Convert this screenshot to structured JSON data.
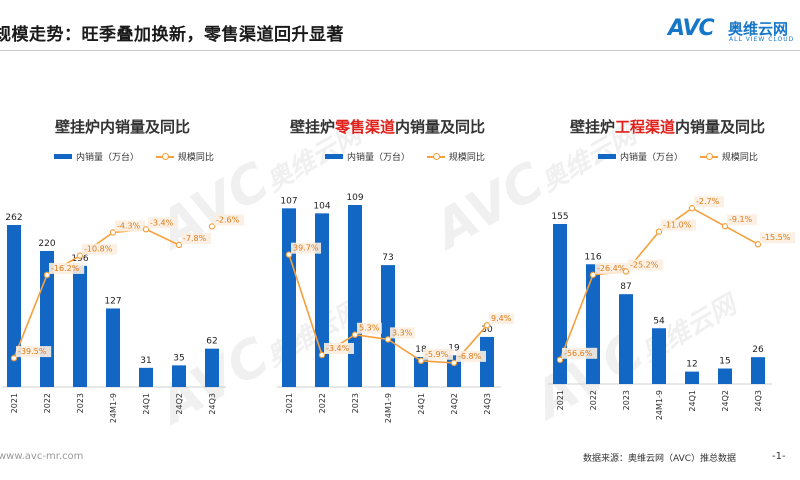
{
  "header": {
    "title": "规模走势：旺季叠加换新，零售渠道回升显著",
    "logo_mark": "AVC",
    "logo_cn": "奥维云网",
    "logo_en": "ALL VIEW CLOUD"
  },
  "watermark": {
    "mark": "AVC",
    "cn": "奥维云网",
    "en": "ALL VIEW CLOUD"
  },
  "footer": {
    "website": "www.avc-mr.com",
    "source": "数据来源：奥维云网（AVC）推总数据",
    "page": "-1-"
  },
  "colors": {
    "bar": "#1367c4",
    "line": "#f5a03c",
    "highlight": "#e0201a"
  },
  "chart_data": [
    {
      "type": "bar",
      "title_parts": [
        "壁挂炉内销量及同比",
        "",
        ""
      ],
      "legend": [
        "内销量（万台）",
        "规模同比"
      ],
      "categories": [
        "2021",
        "2022",
        "2023",
        "24M1-9",
        "24Q1",
        "24Q2",
        "24Q3"
      ],
      "series": [
        {
          "name": "内销量（万台）",
          "kind": "bar",
          "values": [
            262,
            220,
            196,
            127,
            31,
            35,
            62
          ]
        },
        {
          "name": "规模同比",
          "kind": "line",
          "values": [
            -39.5,
            -16.2,
            -10.8,
            -4.3,
            -3.4,
            -7.8,
            -2.6
          ],
          "labels": [
            "-39.5%",
            "-16.2%",
            "-10.8%",
            "-4.3%",
            "-3.4%",
            "-7.8%",
            "-2.6%"
          ],
          "gaps": [
            6
          ]
        }
      ],
      "line_range": [
        -42,
        2
      ]
    },
    {
      "type": "bar",
      "title_parts": [
        "壁挂炉",
        "零售渠道",
        "内销量及同比"
      ],
      "legend": [
        "内销量（万台）",
        "规模同比"
      ],
      "categories": [
        "2021",
        "2022",
        "2023",
        "24M1-9",
        "24Q1",
        "24Q2",
        "24Q3"
      ],
      "series": [
        {
          "name": "内销量（万台）",
          "kind": "bar",
          "values": [
            107,
            104,
            109,
            73,
            18,
            19,
            30
          ]
        },
        {
          "name": "规模同比",
          "kind": "line",
          "values": [
            39.7,
            -3.4,
            5.3,
            3.3,
            -5.9,
            -6.8,
            9.4
          ],
          "labels": [
            "39.7%",
            "-3.4%",
            "5.3%",
            "3.3%",
            "-5.9%",
            "-6.8%",
            "9.4%"
          ],
          "gaps": []
        }
      ],
      "line_range": [
        -12,
        46
      ]
    },
    {
      "type": "bar",
      "title_parts": [
        "壁挂炉",
        "工程渠道",
        "内销量及同比"
      ],
      "legend": [
        "内销量（万台）",
        "规模同比"
      ],
      "categories": [
        "2021",
        "2022",
        "2023",
        "24M1-9",
        "24Q1",
        "24Q2",
        "24Q3"
      ],
      "series": [
        {
          "name": "内销量（万台）",
          "kind": "bar",
          "values": [
            155,
            116,
            87,
            54,
            12,
            15,
            26
          ]
        },
        {
          "name": "规模同比",
          "kind": "line",
          "values": [
            -56.6,
            -26.4,
            -25.2,
            -11.0,
            -2.7,
            -9.1,
            -15.5
          ],
          "labels": [
            "-56.6%",
            "-26.4%",
            "-25.2%",
            "-11.0%",
            "-2.7%",
            "-9.1%",
            "-15.5%"
          ],
          "gaps": []
        }
      ],
      "line_range": [
        -62,
        2
      ]
    }
  ]
}
